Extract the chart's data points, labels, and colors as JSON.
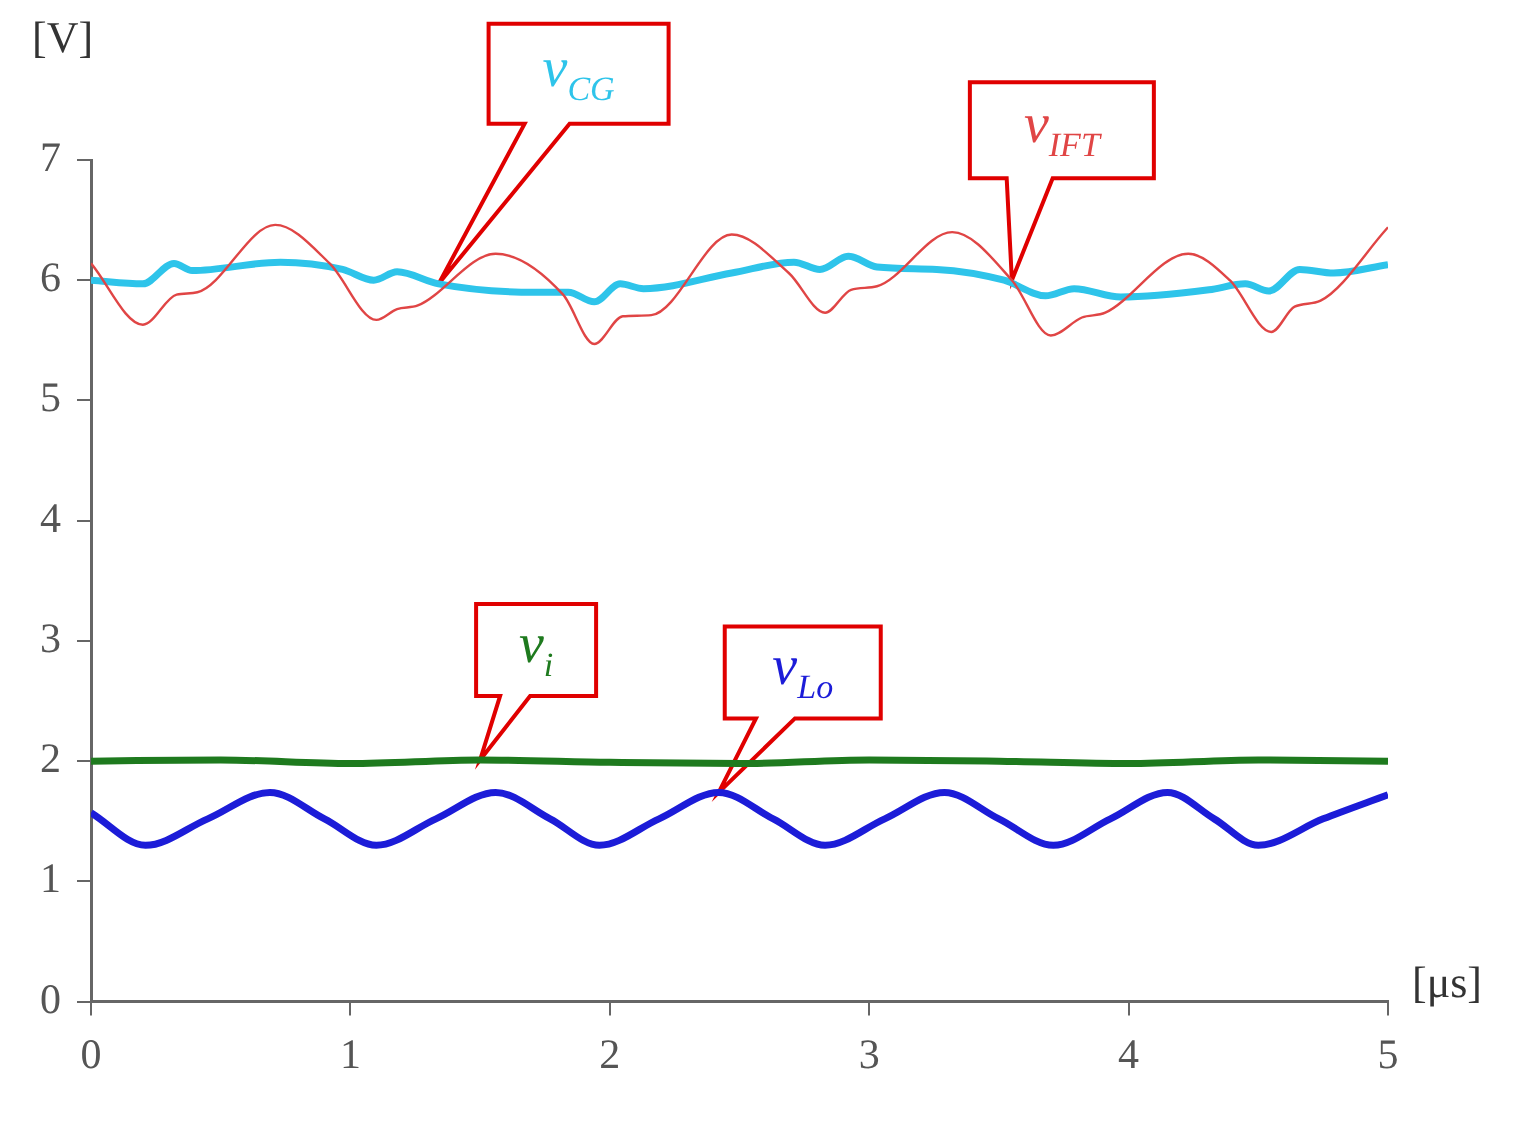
{
  "chart_data": {
    "type": "line",
    "xlabel": "[μs]",
    "ylabel": "[V]",
    "xlim": [
      0,
      5
    ],
    "xticks": [
      0,
      1,
      2,
      3,
      4,
      5
    ],
    "ylim": [
      0,
      7
    ],
    "yticks": [
      0,
      1,
      2,
      3,
      4,
      5,
      6,
      7
    ],
    "grid": false,
    "legend": false,
    "marker": "none",
    "line_style": "solid",
    "series": [
      {
        "name": "v$_{IFT}$",
        "color": "#e04545",
        "x": [
          0,
          0.2,
          0.33,
          0.41,
          0.71,
          0.92,
          1.1,
          1.18,
          1.26,
          1.56,
          1.82,
          1.94,
          2.05,
          2.16,
          2.47,
          2.69,
          2.83,
          2.93,
          3.03,
          3.32,
          3.55,
          3.7,
          3.82,
          3.91,
          4.23,
          4.39,
          4.55,
          4.64,
          4.74,
          5
        ],
        "values": [
          6.14,
          5.63,
          5.88,
          5.9,
          6.46,
          6.14,
          5.67,
          5.76,
          5.79,
          6.22,
          5.88,
          5.47,
          5.7,
          5.71,
          6.38,
          6.06,
          5.73,
          5.92,
          5.95,
          6.4,
          6.0,
          5.54,
          5.69,
          5.73,
          6.22,
          6.0,
          5.57,
          5.78,
          5.83,
          6.44
        ]
      },
      {
        "name": "v$_{CG}$",
        "color": "#2ec4ea",
        "x": [
          0,
          0.2,
          0.32,
          0.39,
          0.73,
          0.97,
          1.09,
          1.18,
          1.34,
          1.71,
          1.84,
          1.94,
          2.04,
          2.13,
          2.47,
          2.71,
          2.81,
          2.92,
          3.03,
          3.26,
          3.52,
          3.68,
          3.79,
          3.97,
          4.31,
          4.45,
          4.54,
          4.66,
          4.79,
          5
        ],
        "values": [
          6.0,
          5.97,
          6.14,
          6.08,
          6.15,
          6.09,
          6.0,
          6.07,
          5.97,
          5.9,
          5.9,
          5.82,
          5.97,
          5.93,
          6.06,
          6.15,
          6.09,
          6.2,
          6.11,
          6.09,
          6.0,
          5.87,
          5.93,
          5.86,
          5.92,
          5.97,
          5.91,
          6.09,
          6.06,
          6.13
        ]
      },
      {
        "name": "v$_{i}$",
        "color": "#1e7a1e",
        "x": [
          0,
          0.5,
          1,
          1.5,
          2,
          2.5,
          3,
          3.5,
          4,
          4.5,
          5
        ],
        "values": [
          2.0,
          2.01,
          1.98,
          2.01,
          1.99,
          1.98,
          2.01,
          2.0,
          1.98,
          2.01,
          2.0
        ]
      },
      {
        "name": "v$_{Lo}$",
        "color": "#1c1cd8",
        "x": [
          0,
          0.21,
          0.45,
          0.69,
          0.9,
          1.1,
          1.33,
          1.56,
          1.77,
          1.96,
          2.19,
          2.42,
          2.63,
          2.83,
          3.06,
          3.29,
          3.5,
          3.71,
          3.93,
          4.15,
          4.33,
          4.5,
          4.75,
          5
        ],
        "values": [
          1.57,
          1.3,
          1.52,
          1.74,
          1.52,
          1.3,
          1.52,
          1.74,
          1.52,
          1.3,
          1.52,
          1.74,
          1.52,
          1.3,
          1.52,
          1.74,
          1.52,
          1.3,
          1.52,
          1.74,
          1.52,
          1.3,
          1.52,
          1.72
        ]
      }
    ]
  }
}
